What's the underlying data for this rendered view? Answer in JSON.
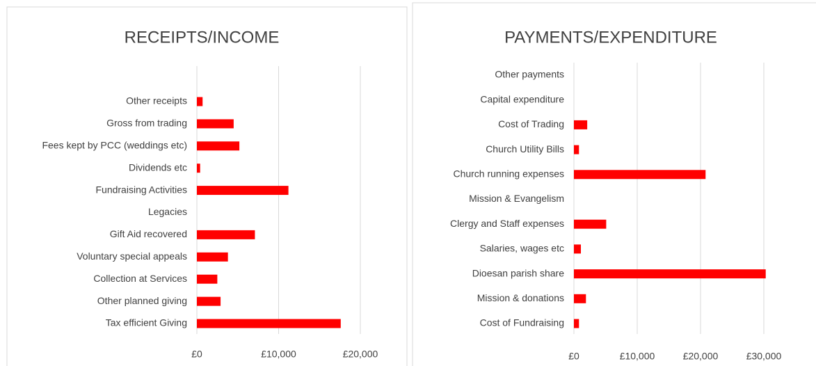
{
  "chart_data": [
    {
      "type": "bar",
      "orientation": "horizontal",
      "title": "RECEIPTS/INCOME",
      "categories": [
        "Other receipts",
        "Gross from trading",
        "Fees kept by PCC (weddings etc)",
        "Dividends etc",
        "Fundraising Activities",
        "Legacies",
        "Gift Aid recovered",
        "Voluntary special appeals",
        "Collection at Services",
        "Other planned giving",
        "Tax efficient Giving"
      ],
      "values": [
        700,
        4500,
        5200,
        400,
        11200,
        0,
        7100,
        3800,
        2500,
        2900,
        17600
      ],
      "color": "#ff0000",
      "xlim": [
        0,
        20000
      ],
      "xticks": [
        {
          "value": 0,
          "label": "£0"
        },
        {
          "value": 10000,
          "label": "£10,000"
        },
        {
          "value": 20000,
          "label": "£20,000"
        }
      ],
      "grid": true
    },
    {
      "type": "bar",
      "orientation": "horizontal",
      "title": "PAYMENTS/EXPENDITURE",
      "categories": [
        "Other payments",
        "Capital expenditure",
        "Cost of Trading",
        "Church Utility Bills",
        "Church running expenses",
        "Mission & Evangelism",
        "Clergy and Staff expenses",
        "Salaries, wages etc",
        "Dioesan parish share",
        "Mission & donations",
        "Cost of Fundraising"
      ],
      "values": [
        0,
        0,
        2100,
        800,
        20800,
        0,
        5100,
        1100,
        30300,
        1900,
        800
      ],
      "color": "#ff0000",
      "xlim": [
        0,
        30000
      ],
      "xticks": [
        {
          "value": 0,
          "label": "£0"
        },
        {
          "value": 10000,
          "label": "£10,000"
        },
        {
          "value": 20000,
          "label": "£20,000"
        },
        {
          "value": 30000,
          "label": "£30,000"
        }
      ],
      "grid": true
    }
  ]
}
